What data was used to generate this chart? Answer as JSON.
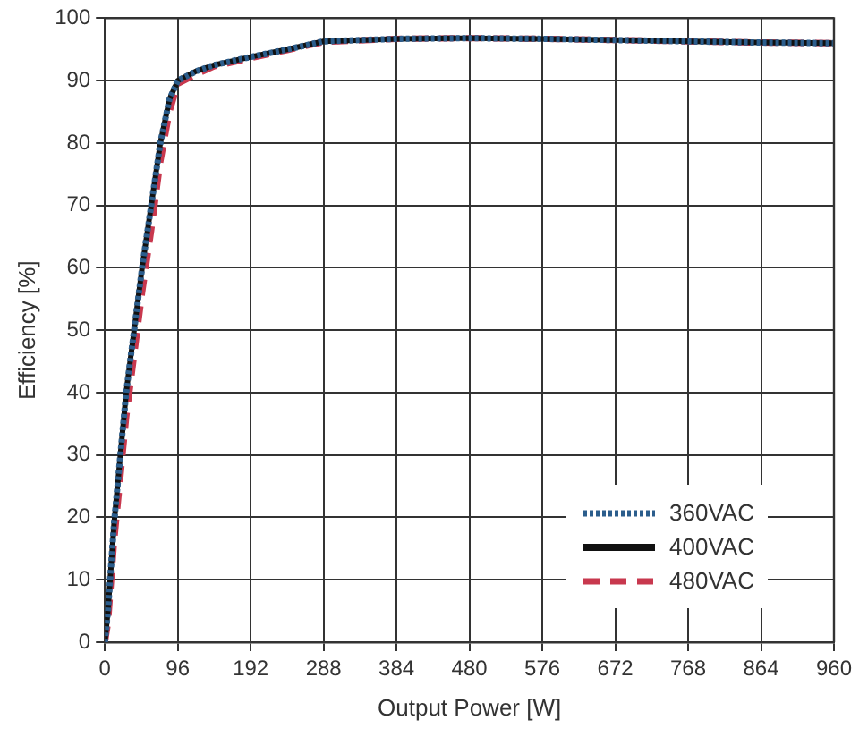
{
  "chart_data": {
    "type": "line",
    "xlabel": "Output Power [W]",
    "ylabel": "Efficiency [%]",
    "x": [
      0,
      4,
      12,
      28,
      49,
      61,
      73,
      85,
      96,
      120,
      144,
      192,
      240,
      288,
      384,
      480,
      576,
      672,
      768,
      864,
      960
    ],
    "xlim": [
      0,
      960
    ],
    "xticks": [
      0,
      96,
      192,
      288,
      384,
      480,
      576,
      672,
      768,
      864,
      960
    ],
    "ylim": [
      0,
      100
    ],
    "yticks": [
      0,
      10,
      20,
      30,
      40,
      50,
      60,
      70,
      80,
      90,
      100
    ],
    "grid": true,
    "legend": "bottom right",
    "marker": "none",
    "series": [
      {
        "name": "360VAC",
        "color": "#2b5d8c",
        "line_style": "dotted",
        "values": [
          0,
          5,
          19,
          40,
          60,
          70,
          80,
          87,
          90,
          91.5,
          92.5,
          93.8,
          95,
          96.3,
          96.7,
          96.8,
          96.7,
          96.5,
          96.3,
          96.1,
          96
        ]
      },
      {
        "name": "400VAC",
        "color": "#111111",
        "line_style": "solid",
        "values": [
          0,
          5,
          19,
          40,
          60,
          70,
          80,
          87,
          90,
          91.5,
          92.5,
          93.8,
          95,
          96.3,
          96.7,
          96.8,
          96.7,
          96.5,
          96.3,
          96.1,
          96
        ]
      },
      {
        "name": "480VAC",
        "color": "#c8384e",
        "line_style": "dashed",
        "values": [
          0,
          3,
          16,
          36,
          56,
          66,
          77,
          85,
          89.5,
          91,
          92.3,
          93.6,
          94.9,
          96.2,
          96.7,
          96.8,
          96.7,
          96.5,
          96.3,
          96.1,
          96
        ]
      }
    ]
  }
}
